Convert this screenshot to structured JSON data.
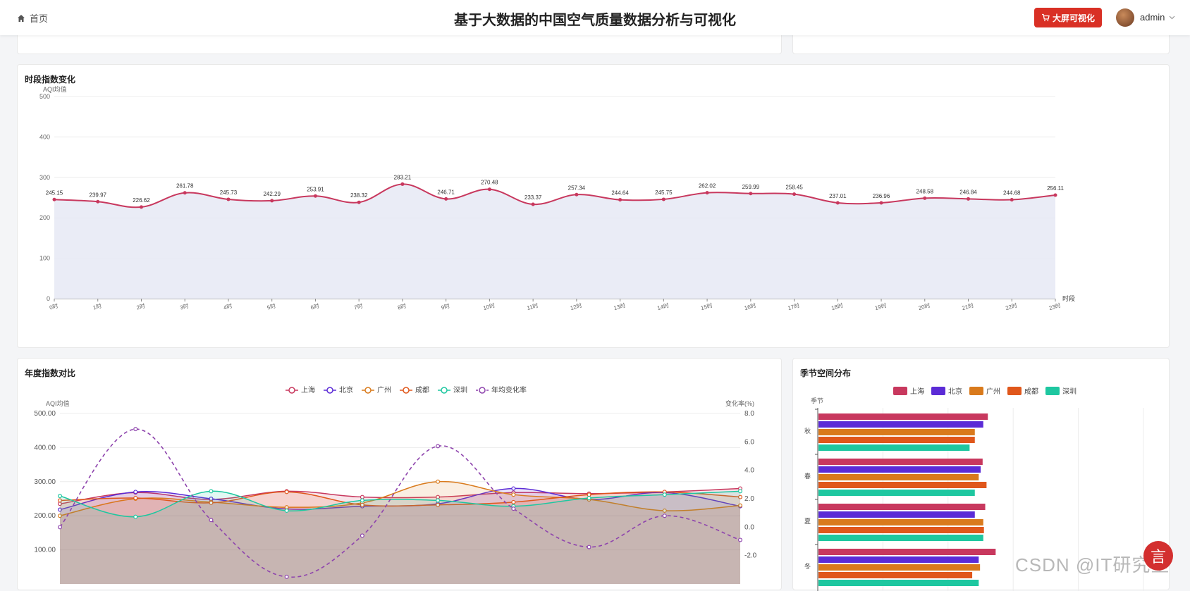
{
  "header": {
    "home_label": "首页",
    "title": "基于大数据的中国空气质量数据分析与可视化",
    "big_screen_label": "大屏可视化",
    "user_name": "admin"
  },
  "watermark": "CSDN @IT研究室",
  "fab_label": "言",
  "colors": {
    "accent": "#d93025",
    "line1": "#c8385e",
    "area1": "#e8eaf5"
  },
  "chart_data": [
    {
      "type": "line",
      "title": "时段指数变化",
      "ylabel": "AQI均值",
      "xlabel": "时段",
      "ylim": [
        0,
        500
      ],
      "yticks": [
        "0",
        "100",
        "200",
        "300",
        "400",
        "500"
      ],
      "categories": [
        "0时",
        "1时",
        "2时",
        "3时",
        "4时",
        "5时",
        "6时",
        "7时",
        "8时",
        "9时",
        "10时",
        "11时",
        "12时",
        "13时",
        "14时",
        "15时",
        "16时",
        "17时",
        "18时",
        "19时",
        "20时",
        "21时",
        "22时",
        "23时"
      ],
      "values": [
        245.15,
        239.97,
        226.62,
        261.78,
        245.73,
        242.29,
        253.91,
        238.32,
        283.21,
        246.71,
        270.48,
        233.37,
        257.34,
        244.64,
        245.75,
        262.02,
        259.99,
        258.45,
        237.01,
        236.96,
        248.58,
        246.84,
        244.68,
        256.11
      ],
      "labels": [
        "245.15",
        "239.97",
        "226.62",
        "261.78",
        "245.73",
        "242.29",
        "253.91",
        "238.32",
        "283.21",
        "246.71",
        "270.48",
        "233.37",
        "257.34",
        "244.64",
        "245.75",
        "262.02",
        "259.99",
        "258.45",
        "237.01",
        "236.96",
        "248.58",
        "246.84",
        "244.68",
        "256.11"
      ],
      "grid": true
    },
    {
      "type": "line",
      "title": "年度指数对比",
      "ylabel": "AQI均值",
      "ylabel_right": "变化率(%)",
      "ylim": [
        0,
        500
      ],
      "ylim_right": [
        -4,
        8
      ],
      "yticks": [
        "100.00",
        "200.00",
        "300.00",
        "400.00",
        "500.00"
      ],
      "yticks_right": [
        "-2.0",
        "0.0",
        "2.0",
        "4.0",
        "6.0",
        "8.0"
      ],
      "legend_position": "top-center",
      "series": [
        {
          "name": "上海",
          "color": "#c8385e",
          "values": [
            235,
            268,
            248,
            272,
            255,
            255,
            268,
            265,
            270,
            280
          ]
        },
        {
          "name": "北京",
          "color": "#5b2bd6",
          "values": [
            218,
            270,
            250,
            220,
            228,
            235,
            280,
            248,
            268,
            228
          ]
        },
        {
          "name": "广州",
          "color": "#d97a1c",
          "values": [
            200,
            250,
            240,
            225,
            238,
            300,
            262,
            248,
            215,
            230
          ]
        },
        {
          "name": "成都",
          "color": "#e0571b",
          "values": [
            245,
            252,
            238,
            270,
            232,
            232,
            240,
            262,
            270,
            255
          ]
        },
        {
          "name": "深圳",
          "color": "#1ec7a0",
          "values": [
            258,
            197,
            272,
            215,
            245,
            245,
            228,
            252,
            262,
            272
          ]
        },
        {
          "name": "年均变化率",
          "color": "#8e44ad",
          "dashed": true,
          "axis": "right",
          "values": [
            0.0,
            6.9,
            0.5,
            -3.5,
            -0.6,
            5.7,
            1.3,
            -1.4,
            0.8,
            -0.9
          ]
        }
      ]
    },
    {
      "type": "bar",
      "orientation": "horizontal",
      "title": "季节空间分布",
      "ylabel": "季节",
      "categories": [
        "秋",
        "春",
        "夏",
        "冬"
      ],
      "legend_position": "top-center",
      "xlim": [
        0,
        500
      ],
      "series": [
        {
          "name": "上海",
          "color": "#c8385e",
          "values": [
            260,
            252,
            256,
            272
          ]
        },
        {
          "name": "北京",
          "color": "#5b2bd6",
          "values": [
            253,
            249,
            240,
            246
          ]
        },
        {
          "name": "广州",
          "color": "#d97a1c",
          "values": [
            240,
            246,
            253,
            248
          ]
        },
        {
          "name": "成都",
          "color": "#e0571b",
          "values": [
            240,
            258,
            254,
            236
          ]
        },
        {
          "name": "深圳",
          "color": "#1ec7a0",
          "values": [
            232,
            240,
            253,
            246
          ]
        }
      ]
    }
  ]
}
